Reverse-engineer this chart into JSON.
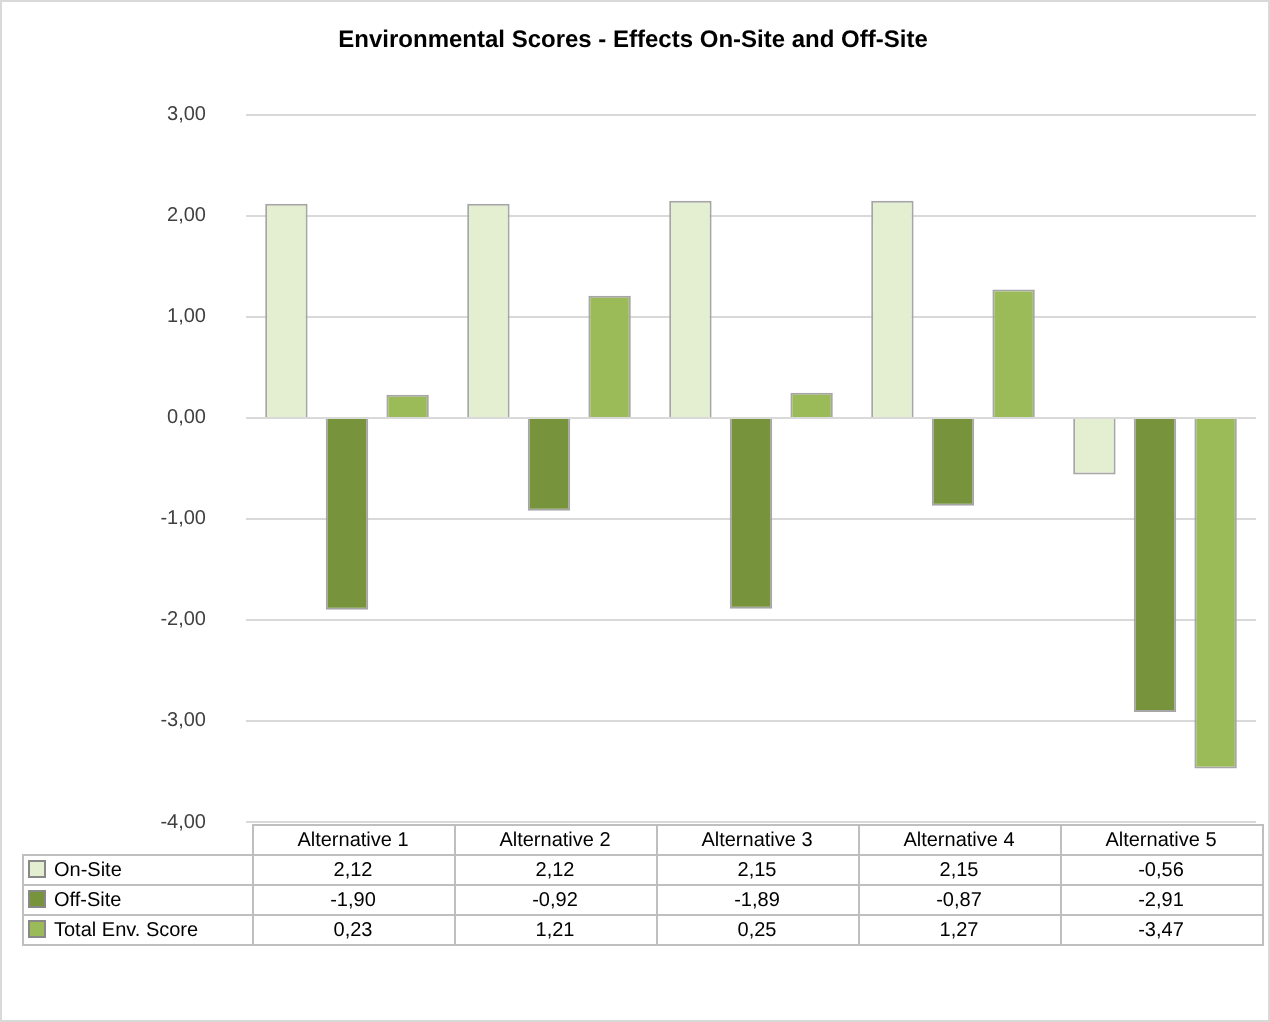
{
  "chart_data": {
    "type": "bar",
    "title": "Environmental Scores - Effects On-Site and Off-Site",
    "categories": [
      "Alternative 1",
      "Alternative 2",
      "Alternative 3",
      "Alternative 4",
      "Alternative 5"
    ],
    "series": [
      {
        "name": "On-Site",
        "color": "#e4efd2",
        "values": [
          2.12,
          2.12,
          2.15,
          2.15,
          -0.56
        ]
      },
      {
        "name": "Off-Site",
        "color": "#77933c",
        "values": [
          -1.9,
          -0.92,
          -1.89,
          -0.87,
          -2.91
        ]
      },
      {
        "name": "Total Env. Score",
        "color": "#9bbb59",
        "values": [
          0.23,
          1.21,
          0.25,
          1.27,
          -3.47
        ]
      }
    ],
    "value_labels": [
      [
        "2,12",
        "2,12",
        "2,15",
        "2,15",
        "-0,56"
      ],
      [
        "-1,90",
        "-0,92",
        "-1,89",
        "-0,87",
        "-2,91"
      ],
      [
        "0,23",
        "1,21",
        "0,25",
        "1,27",
        "-3,47"
      ]
    ],
    "ylim": [
      -4,
      3
    ],
    "yticks": [
      {
        "value": -4,
        "label": "-4,00"
      },
      {
        "value": -3,
        "label": "-3,00"
      },
      {
        "value": -2,
        "label": "-2,00"
      },
      {
        "value": -1,
        "label": "-1,00"
      },
      {
        "value": 0,
        "label": "0,00"
      },
      {
        "value": 1,
        "label": "1,00"
      },
      {
        "value": 2,
        "label": "2,00"
      },
      {
        "value": 3,
        "label": "3,00"
      }
    ],
    "grid": "y",
    "legend": "bottom"
  }
}
